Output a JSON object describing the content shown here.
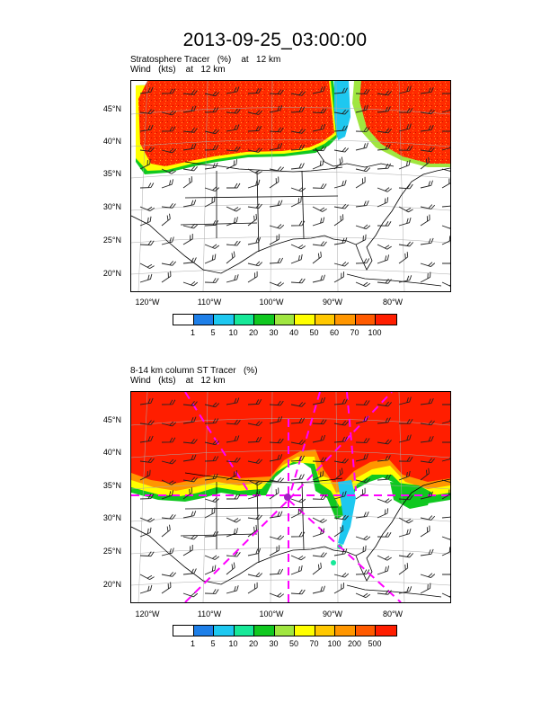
{
  "page_title": "2013-09-25_03:00:00",
  "panel1": {
    "title_line1": "Stratosphere Tracer   (%)    at   12 km",
    "title_line2": "Wind   (kts)    at   12 km",
    "colorbar_labels": [
      "1",
      "5",
      "10",
      "20",
      "30",
      "40",
      "50",
      "60",
      "70",
      "100"
    ]
  },
  "panel2": {
    "title_line1": "8-14 km column ST Tracer   (%)",
    "title_line2": "Wind   (kts)    at   12 km",
    "colorbar_labels": [
      "1",
      "5",
      "10",
      "20",
      "30",
      "50",
      "70",
      "100",
      "200",
      "500"
    ]
  },
  "map": {
    "lat_labels": [
      "45°N",
      "40°N",
      "35°N",
      "30°N",
      "25°N",
      "20°N"
    ],
    "lon_labels": [
      "120°W",
      "110°W",
      "100°W",
      "90°W",
      "80°W"
    ]
  },
  "colors": {
    "levels": [
      "#ffffff",
      "#1e7fe8",
      "#1ec8f0",
      "#17e898",
      "#10c820",
      "#a0e640",
      "#ffff00",
      "#ffc800",
      "#ff9600",
      "#ff5a00",
      "#ff1e00"
    ],
    "overlay_dash": "#ff00ff"
  }
}
